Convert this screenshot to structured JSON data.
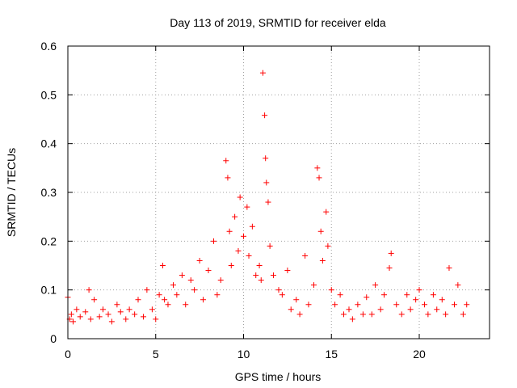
{
  "chart_data": {
    "type": "scatter",
    "title": "Day 113 of 2019, SRMTID for receiver elda",
    "xlabel": "GPS time / hours",
    "ylabel": "SRMTID / TECUs",
    "xlim": [
      0,
      24
    ],
    "ylim": [
      0,
      0.6
    ],
    "x_ticks": [
      0,
      5,
      10,
      15,
      20
    ],
    "y_ticks": [
      0,
      0.1,
      0.2,
      0.3,
      0.4,
      0.5,
      0.6
    ],
    "x_tick_labels": [
      "0",
      "5",
      "10",
      "15",
      "20"
    ],
    "y_tick_labels": [
      "0",
      "0.1",
      "0.2",
      "0.3",
      "0.4",
      "0.5",
      "0.6"
    ],
    "grid": true,
    "marker": "+",
    "marker_color": "#ff0000",
    "series": [
      {
        "name": "SRMTID",
        "x": [
          0.0,
          0.1,
          0.2,
          0.3,
          0.5,
          0.7,
          1.0,
          1.2,
          1.3,
          1.5,
          1.8,
          2.0,
          2.3,
          2.5,
          2.8,
          3.0,
          3.3,
          3.5,
          3.8,
          4.0,
          4.3,
          4.5,
          4.8,
          5.0,
          5.2,
          5.4,
          5.5,
          5.7,
          6.0,
          6.2,
          6.5,
          6.7,
          7.0,
          7.2,
          7.5,
          7.7,
          8.0,
          8.3,
          8.5,
          8.7,
          9.0,
          9.1,
          9.2,
          9.3,
          9.5,
          9.7,
          9.8,
          10.0,
          10.2,
          10.3,
          10.5,
          10.7,
          10.9,
          11.0,
          11.1,
          11.2,
          11.25,
          11.3,
          11.4,
          11.5,
          11.7,
          12.0,
          12.2,
          12.5,
          12.7,
          13.0,
          13.2,
          13.5,
          13.7,
          14.0,
          14.2,
          14.3,
          14.4,
          14.5,
          14.7,
          14.8,
          15.0,
          15.2,
          15.5,
          15.7,
          16.0,
          16.2,
          16.5,
          16.8,
          17.0,
          17.3,
          17.5,
          17.8,
          18.0,
          18.3,
          18.4,
          18.7,
          19.0,
          19.3,
          19.5,
          19.8,
          20.0,
          20.3,
          20.5,
          20.8,
          21.0,
          21.3,
          21.5,
          21.7,
          22.0,
          22.2,
          22.5,
          22.7
        ],
        "y": [
          0.085,
          0.04,
          0.05,
          0.035,
          0.06,
          0.045,
          0.055,
          0.1,
          0.04,
          0.08,
          0.045,
          0.06,
          0.05,
          0.035,
          0.07,
          0.055,
          0.04,
          0.06,
          0.05,
          0.08,
          0.045,
          0.1,
          0.06,
          0.04,
          0.09,
          0.15,
          0.08,
          0.07,
          0.11,
          0.09,
          0.13,
          0.07,
          0.12,
          0.1,
          0.16,
          0.08,
          0.14,
          0.2,
          0.09,
          0.12,
          0.365,
          0.33,
          0.22,
          0.15,
          0.25,
          0.18,
          0.29,
          0.21,
          0.27,
          0.17,
          0.23,
          0.13,
          0.15,
          0.12,
          0.545,
          0.458,
          0.37,
          0.32,
          0.28,
          0.19,
          0.13,
          0.1,
          0.09,
          0.14,
          0.06,
          0.08,
          0.05,
          0.17,
          0.07,
          0.11,
          0.35,
          0.33,
          0.22,
          0.16,
          0.26,
          0.19,
          0.1,
          0.07,
          0.09,
          0.05,
          0.06,
          0.04,
          0.07,
          0.05,
          0.085,
          0.05,
          0.11,
          0.06,
          0.09,
          0.145,
          0.175,
          0.07,
          0.05,
          0.09,
          0.06,
          0.08,
          0.1,
          0.07,
          0.05,
          0.09,
          0.06,
          0.08,
          0.05,
          0.145,
          0.07,
          0.11,
          0.05,
          0.07
        ]
      }
    ]
  }
}
